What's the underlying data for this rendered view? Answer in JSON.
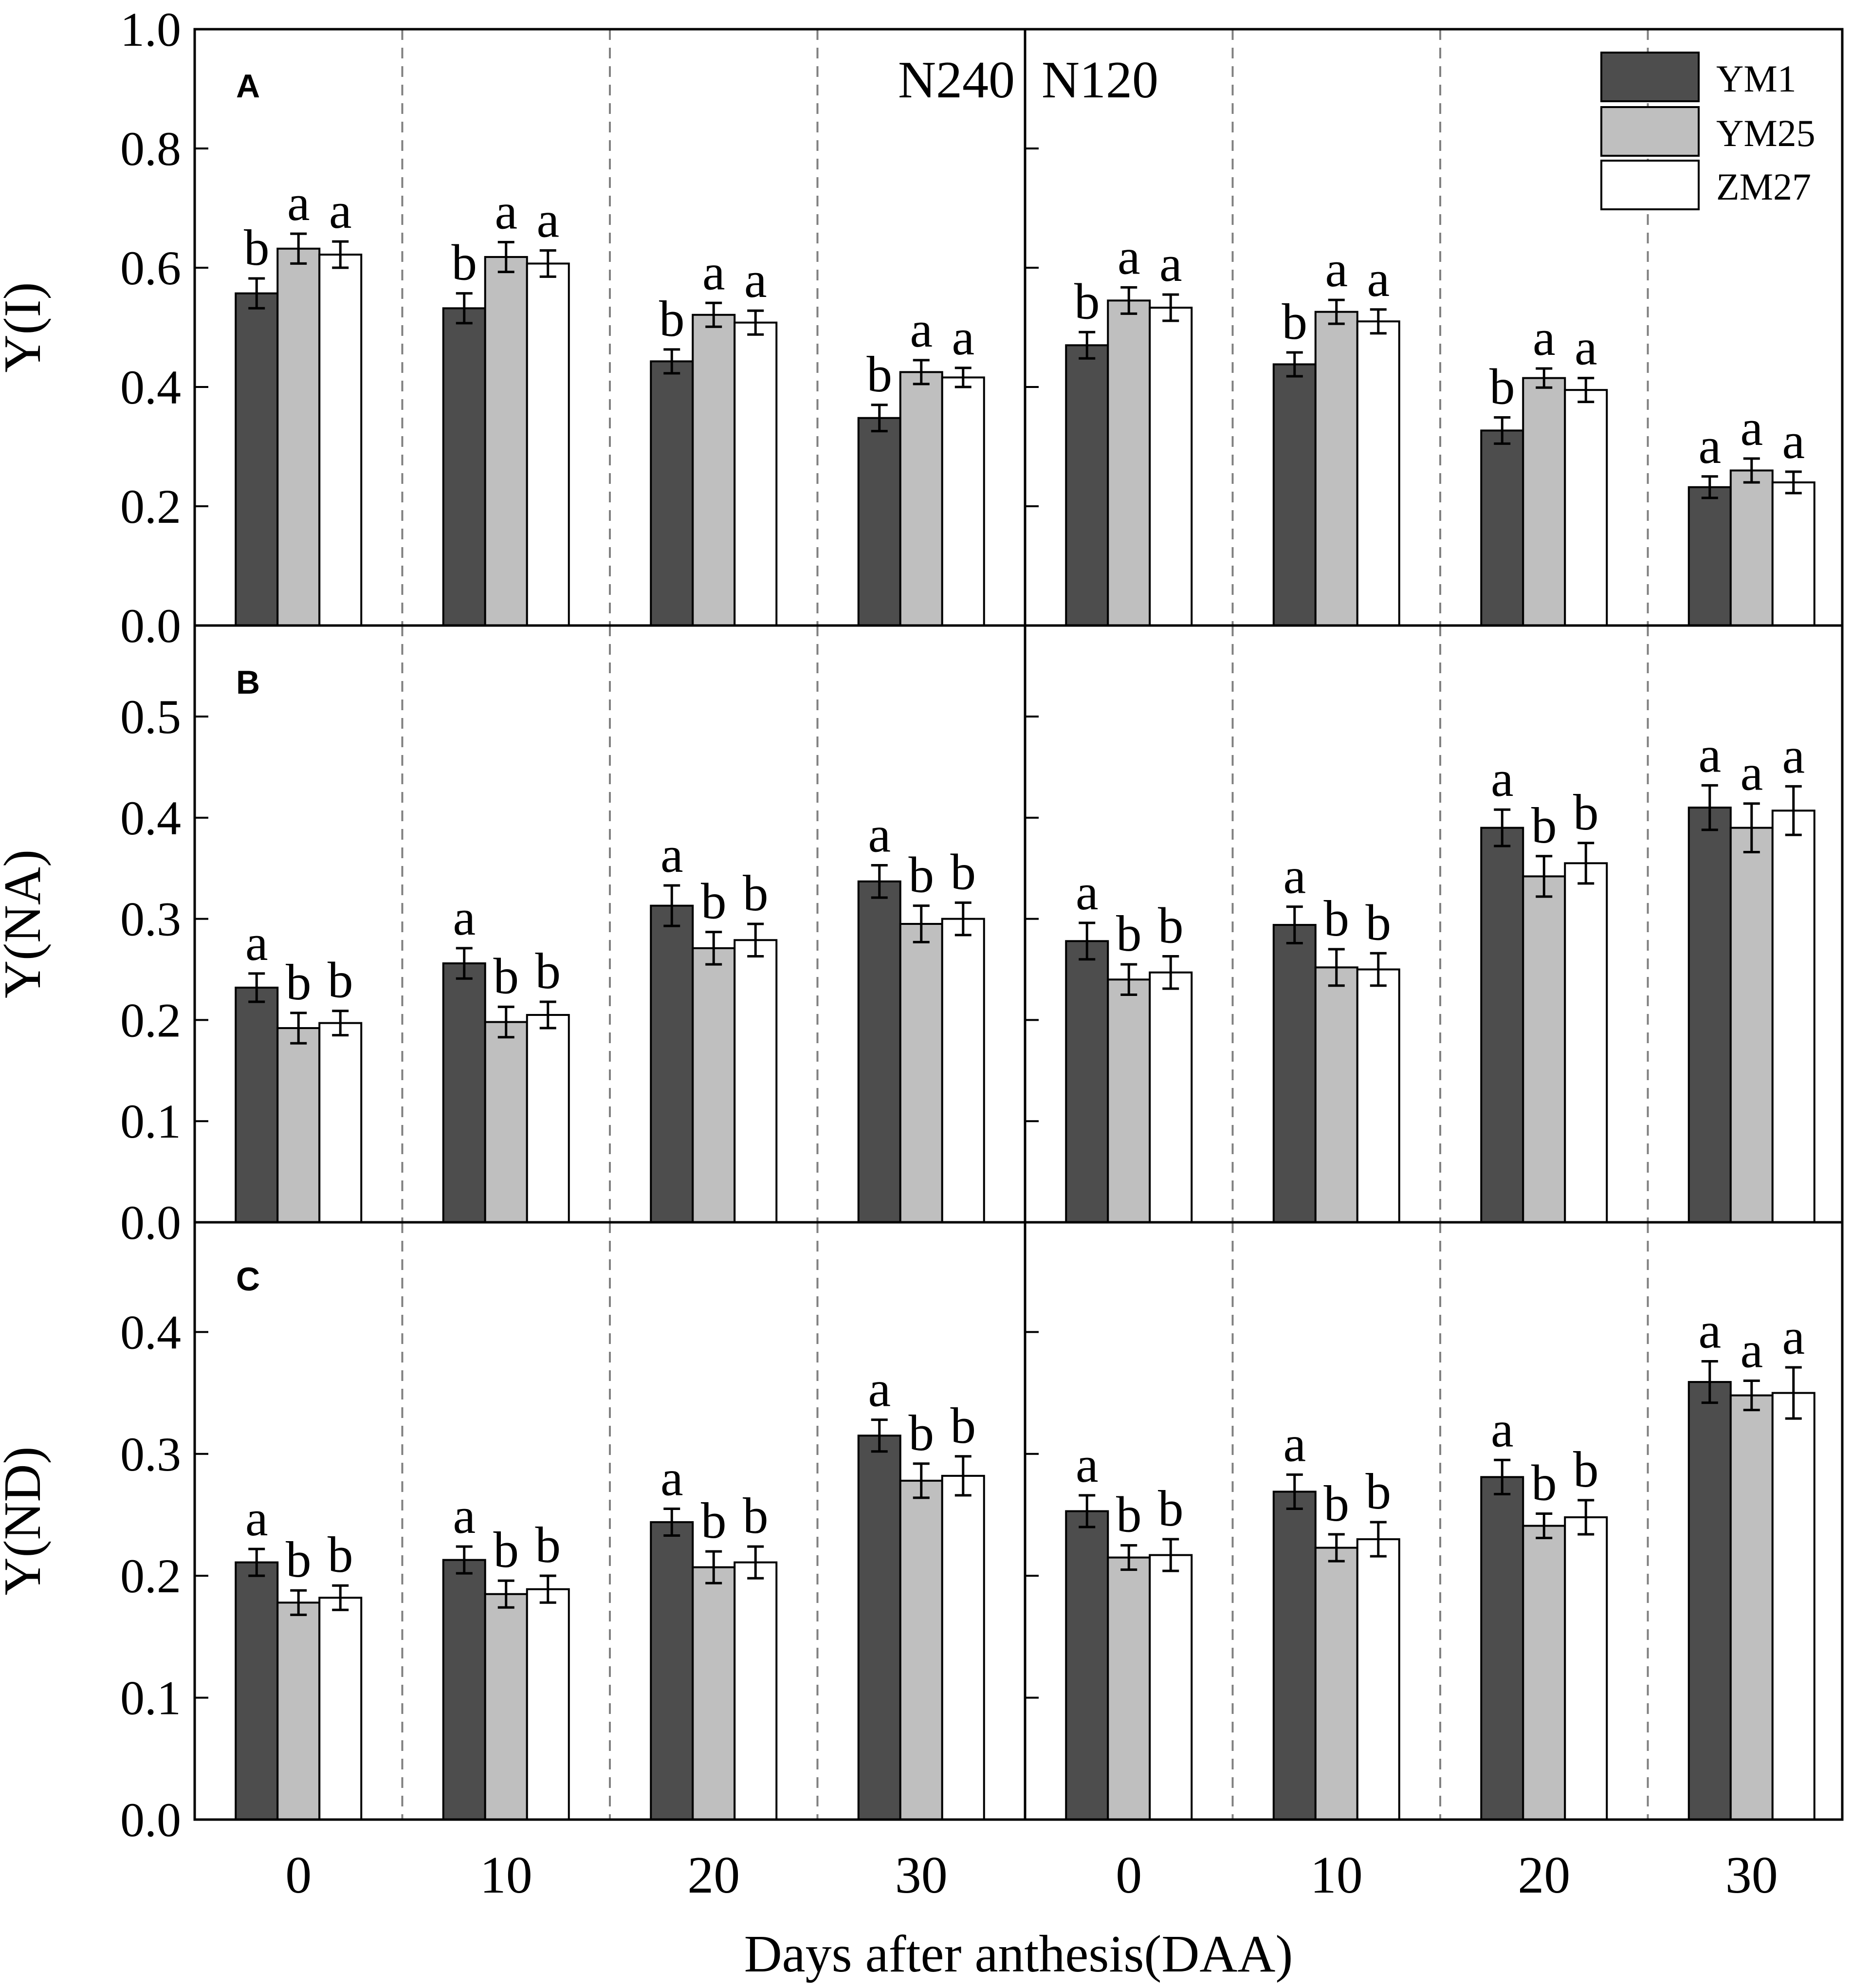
{
  "chart_data": {
    "type": "bar",
    "xlabel": "Days after anthesis(DAA)",
    "treatments": [
      "N240",
      "N120"
    ],
    "categories": [
      "0",
      "10",
      "20",
      "30"
    ],
    "legend": {
      "position": "top-right",
      "entries": [
        "YM1",
        "YM25",
        "ZM27"
      ]
    },
    "colors": {
      "YM1": "#4d4d4d",
      "YM25": "#bfbfbf",
      "ZM27": "#ffffff"
    },
    "panels": [
      {
        "letter": "A",
        "ylabel": "Y(I)",
        "ylim": [
          0,
          1.0
        ],
        "yticks": [
          "0.0",
          "0.2",
          "0.4",
          "0.6",
          "0.8",
          "1.0"
        ],
        "groups": {
          "N240": [
            {
              "values": [
                0.557,
                0.632,
                0.622
              ],
              "errors": [
                0.025,
                0.025,
                0.022
              ],
              "letters": [
                "b",
                "a",
                "a"
              ]
            },
            {
              "values": [
                0.532,
                0.618,
                0.607
              ],
              "errors": [
                0.025,
                0.025,
                0.022
              ],
              "letters": [
                "b",
                "a",
                "a"
              ]
            },
            {
              "values": [
                0.443,
                0.521,
                0.508
              ],
              "errors": [
                0.02,
                0.02,
                0.02
              ],
              "letters": [
                "b",
                "a",
                "a"
              ]
            },
            {
              "values": [
                0.348,
                0.425,
                0.416
              ],
              "errors": [
                0.022,
                0.02,
                0.016
              ],
              "letters": [
                "b",
                "a",
                "a"
              ]
            }
          ],
          "N120": [
            {
              "values": [
                0.47,
                0.545,
                0.533
              ],
              "errors": [
                0.022,
                0.022,
                0.022
              ],
              "letters": [
                "b",
                "a",
                "a"
              ]
            },
            {
              "values": [
                0.438,
                0.526,
                0.51
              ],
              "errors": [
                0.02,
                0.02,
                0.02
              ],
              "letters": [
                "b",
                "a",
                "a"
              ]
            },
            {
              "values": [
                0.327,
                0.415,
                0.395
              ],
              "errors": [
                0.022,
                0.016,
                0.02
              ],
              "letters": [
                "b",
                "a",
                "a"
              ]
            },
            {
              "values": [
                0.232,
                0.26,
                0.24
              ],
              "errors": [
                0.018,
                0.02,
                0.018
              ],
              "letters": [
                "a",
                "a",
                "a"
              ]
            }
          ]
        }
      },
      {
        "letter": "B",
        "ylabel": "Y(NA)",
        "ylim": [
          0,
          0.59
        ],
        "yticks": [
          "0.0",
          "0.1",
          "0.2",
          "0.3",
          "0.4",
          "0.5"
        ],
        "groups": {
          "N240": [
            {
              "values": [
                0.232,
                0.192,
                0.197
              ],
              "errors": [
                0.014,
                0.015,
                0.012
              ],
              "letters": [
                "a",
                "b",
                "b"
              ]
            },
            {
              "values": [
                0.256,
                0.198,
                0.205
              ],
              "errors": [
                0.015,
                0.015,
                0.013
              ],
              "letters": [
                "a",
                "b",
                "b"
              ]
            },
            {
              "values": [
                0.313,
                0.271,
                0.279
              ],
              "errors": [
                0.02,
                0.016,
                0.016
              ],
              "letters": [
                "a",
                "b",
                "b"
              ]
            },
            {
              "values": [
                0.337,
                0.295,
                0.3
              ],
              "errors": [
                0.016,
                0.018,
                0.016
              ],
              "letters": [
                "a",
                "b",
                "b"
              ]
            }
          ],
          "N120": [
            {
              "values": [
                0.278,
                0.24,
                0.247
              ],
              "errors": [
                0.018,
                0.015,
                0.016
              ],
              "letters": [
                "a",
                "b",
                "b"
              ]
            },
            {
              "values": [
                0.294,
                0.252,
                0.25
              ],
              "errors": [
                0.018,
                0.018,
                0.016
              ],
              "letters": [
                "a",
                "b",
                "b"
              ]
            },
            {
              "values": [
                0.39,
                0.342,
                0.355
              ],
              "errors": [
                0.018,
                0.02,
                0.02
              ],
              "letters": [
                "a",
                "b",
                "b"
              ]
            },
            {
              "values": [
                0.41,
                0.39,
                0.407
              ],
              "errors": [
                0.022,
                0.024,
                0.024
              ],
              "letters": [
                "a",
                "a",
                "a"
              ]
            }
          ]
        }
      },
      {
        "letter": "C",
        "ylabel": "Y(ND)",
        "ylim": [
          0,
          0.49
        ],
        "yticks": [
          "0.0",
          "0.1",
          "0.2",
          "0.3",
          "0.4"
        ],
        "groups": {
          "N240": [
            {
              "values": [
                0.211,
                0.178,
                0.182
              ],
              "errors": [
                0.011,
                0.01,
                0.01
              ],
              "letters": [
                "a",
                "b",
                "b"
              ]
            },
            {
              "values": [
                0.213,
                0.185,
                0.189
              ],
              "errors": [
                0.011,
                0.011,
                0.011
              ],
              "letters": [
                "a",
                "b",
                "b"
              ]
            },
            {
              "values": [
                0.244,
                0.207,
                0.211
              ],
              "errors": [
                0.011,
                0.013,
                0.013
              ],
              "letters": [
                "a",
                "b",
                "b"
              ]
            },
            {
              "values": [
                0.315,
                0.278,
                0.282
              ],
              "errors": [
                0.013,
                0.014,
                0.016
              ],
              "letters": [
                "a",
                "b",
                "b"
              ]
            }
          ],
          "N120": [
            {
              "values": [
                0.253,
                0.215,
                0.217
              ],
              "errors": [
                0.013,
                0.01,
                0.013
              ],
              "letters": [
                "a",
                "b",
                "b"
              ]
            },
            {
              "values": [
                0.269,
                0.223,
                0.23
              ],
              "errors": [
                0.014,
                0.011,
                0.014
              ],
              "letters": [
                "a",
                "b",
                "b"
              ]
            },
            {
              "values": [
                0.281,
                0.241,
                0.248
              ],
              "errors": [
                0.014,
                0.01,
                0.014
              ],
              "letters": [
                "a",
                "b",
                "b"
              ]
            },
            {
              "values": [
                0.359,
                0.348,
                0.35
              ],
              "errors": [
                0.017,
                0.012,
                0.021
              ],
              "letters": [
                "a",
                "a",
                "a"
              ]
            }
          ]
        }
      }
    ]
  }
}
